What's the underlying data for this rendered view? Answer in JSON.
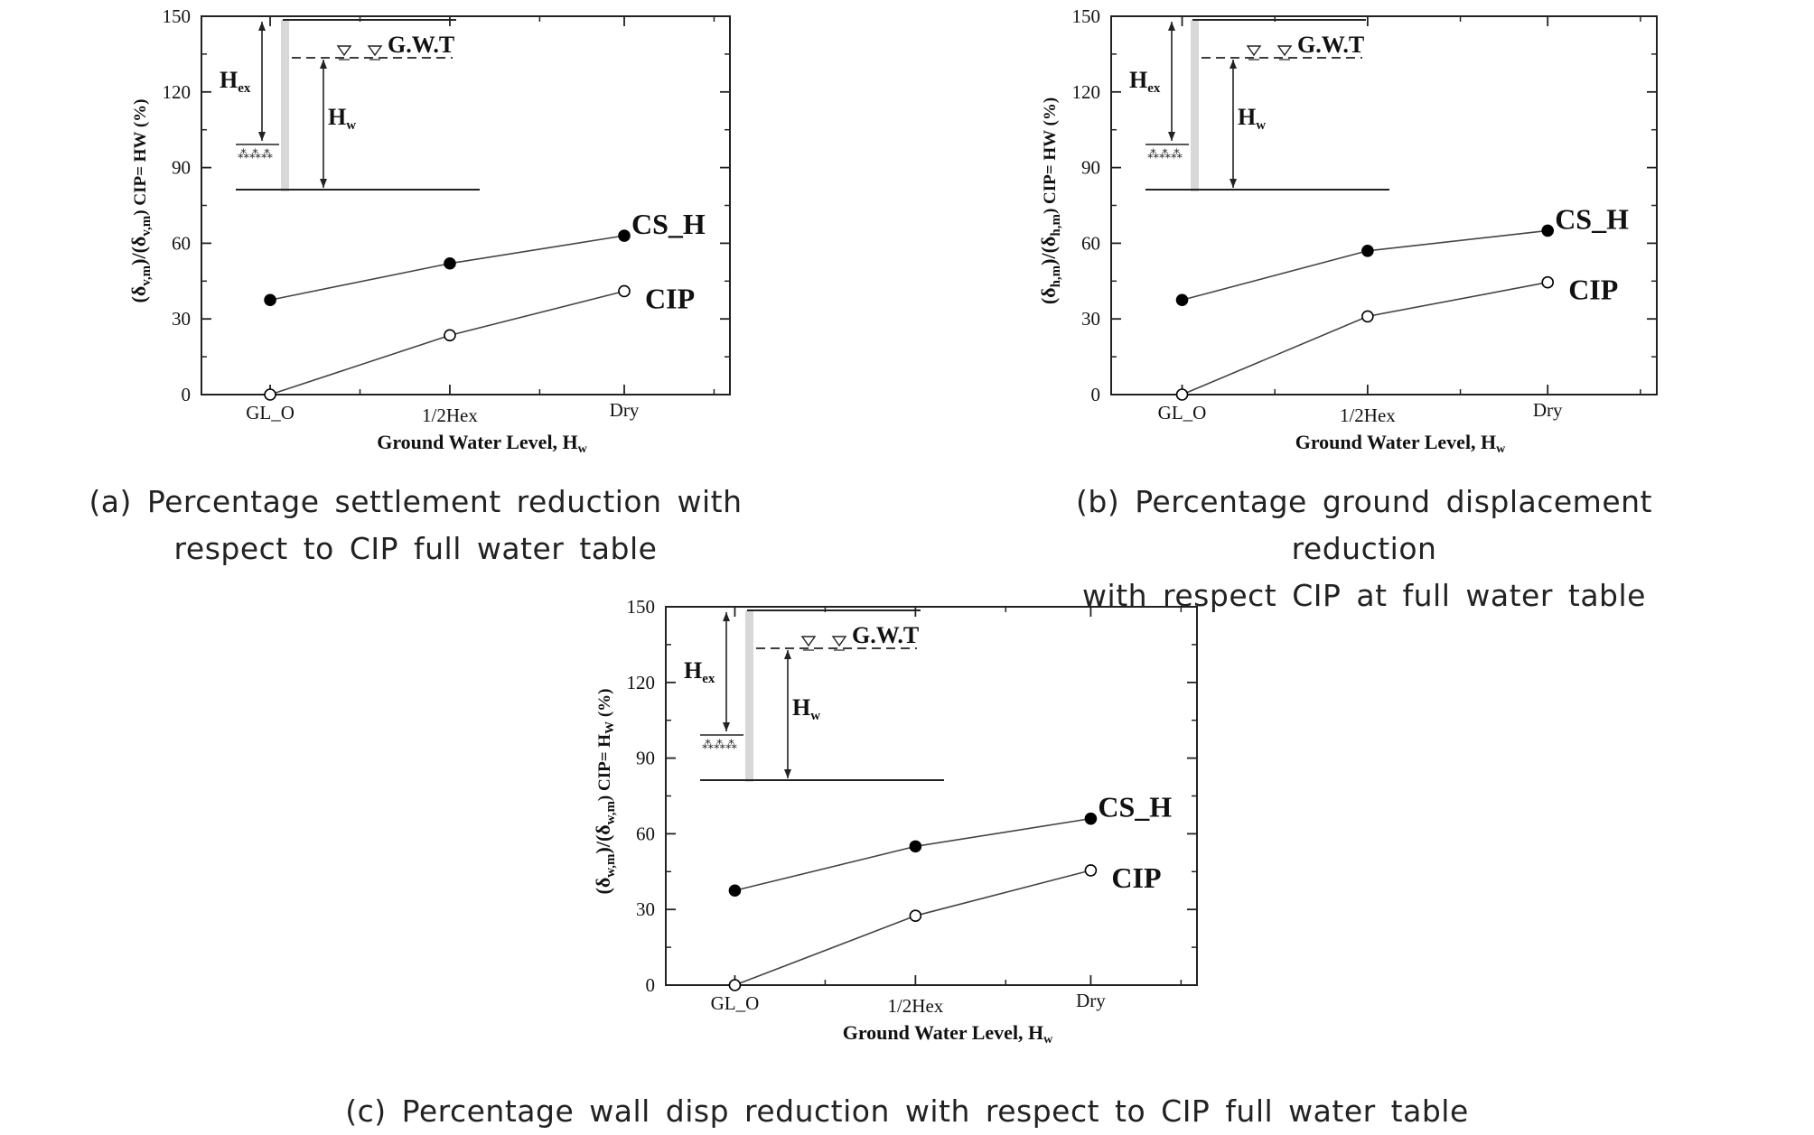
{
  "chart_data": [
    {
      "type": "line",
      "id": "a",
      "categories": [
        "GL_O",
        "1/2Hex",
        "Dry"
      ],
      "series": [
        {
          "name": "CS_H",
          "values": [
            37.5,
            52,
            63
          ],
          "marker": "filled-circle"
        },
        {
          "name": "CIP",
          "values": [
            0,
            23.5,
            41
          ],
          "marker": "open-circle"
        }
      ],
      "ylabel": {
        "main": "(δ",
        "s1": "v,m",
        "m2": ")/(δ",
        "s2": "v,m",
        "m3": ") CIP= HW (%)"
      },
      "xlabel": {
        "main": "Ground Water Level, H",
        "sub": "w"
      },
      "ylim": [
        0,
        150
      ],
      "yticks": [
        0,
        30,
        60,
        90,
        120,
        150
      ],
      "inset": {
        "gwt": "G.W.T",
        "hex": "H",
        "hex_sub": "ex",
        "hw": "H",
        "hw_sub": "w"
      },
      "caption": [
        "(a) Percentage settlement reduction with",
        "respect to CIP full water table"
      ]
    },
    {
      "type": "line",
      "id": "b",
      "categories": [
        "GL_O",
        "1/2Hex",
        "Dry"
      ],
      "series": [
        {
          "name": "CS_H",
          "values": [
            37.5,
            57,
            65
          ],
          "marker": "filled-circle"
        },
        {
          "name": "CIP",
          "values": [
            0,
            31,
            44.5
          ],
          "marker": "open-circle"
        }
      ],
      "ylabel": {
        "main": "(δ",
        "s1": "h,m",
        "m2": ")/(δ",
        "s2": "h,m",
        "m3": ") CIP= HW (%)"
      },
      "xlabel": {
        "main": "Ground Water Level, H",
        "sub": "w"
      },
      "ylim": [
        0,
        150
      ],
      "yticks": [
        0,
        30,
        60,
        90,
        120,
        150
      ],
      "inset": {
        "gwt": "G.W.T",
        "hex": "H",
        "hex_sub": "ex",
        "hw": "H",
        "hw_sub": "w"
      },
      "caption": [
        "(b) Percentage ground displacement reduction",
        "with respect CIP at full water table"
      ]
    },
    {
      "type": "line",
      "id": "c",
      "categories": [
        "GL_O",
        "1/2Hex",
        "Dry"
      ],
      "series": [
        {
          "name": "CS_H",
          "values": [
            37.5,
            55,
            66
          ],
          "marker": "filled-circle"
        },
        {
          "name": "CIP",
          "values": [
            0,
            27.5,
            45.5
          ],
          "marker": "open-circle"
        }
      ],
      "ylabel": {
        "main": "(δ",
        "s1": "w,m",
        "m2": ")/(δ",
        "s2": "w,m",
        "m3": ") CIP= H",
        "s3": "W",
        "m4": " (%)"
      },
      "xlabel": {
        "main": "Ground Water Level, H",
        "sub": "w"
      },
      "ylim": [
        0,
        150
      ],
      "yticks": [
        0,
        30,
        60,
        90,
        120,
        150
      ],
      "inset": {
        "gwt": "G.W.T",
        "hex": "H",
        "hex_sub": "ex",
        "hw": "H",
        "hw_sub": "w"
      },
      "caption": [
        "(c) Percentage wall disp reduction with respect to CIP full water table"
      ]
    }
  ]
}
